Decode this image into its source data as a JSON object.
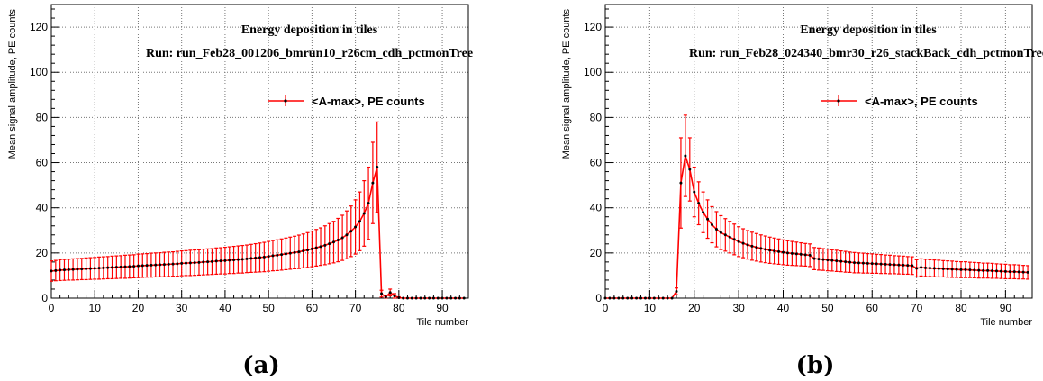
{
  "colors": {
    "series": "#ff0000",
    "marker": "#000000",
    "grid": "#777777",
    "frame": "#000000"
  },
  "chart_data": [
    {
      "type": "line",
      "caption": "(a)",
      "title": "Energy deposition in tiles",
      "subtitle": "Run: run_Feb28_001206_bmrun10_r26cm_cdh_pctmonTree",
      "xlabel": "Tile number",
      "ylabel": "Mean signal amplitude, PE counts",
      "xlim": [
        0,
        96
      ],
      "ylim": [
        0,
        130
      ],
      "xticks": [
        0,
        10,
        20,
        30,
        40,
        50,
        60,
        70,
        80,
        90
      ],
      "yticks": [
        0,
        20,
        40,
        60,
        80,
        100,
        120
      ],
      "grid": true,
      "legend": "top-right",
      "series": [
        {
          "name": "<A-max>, PE counts",
          "x": [
            0,
            1,
            2,
            3,
            4,
            5,
            6,
            7,
            8,
            9,
            10,
            11,
            12,
            13,
            14,
            15,
            16,
            17,
            18,
            19,
            20,
            21,
            22,
            23,
            24,
            25,
            26,
            27,
            28,
            29,
            30,
            31,
            32,
            33,
            34,
            35,
            36,
            37,
            38,
            39,
            40,
            41,
            42,
            43,
            44,
            45,
            46,
            47,
            48,
            49,
            50,
            51,
            52,
            53,
            54,
            55,
            56,
            57,
            58,
            59,
            60,
            61,
            62,
            63,
            64,
            65,
            66,
            67,
            68,
            69,
            70,
            71,
            72,
            73,
            74,
            75,
            76,
            77,
            78,
            79,
            80,
            81,
            82,
            83,
            84,
            85,
            86,
            87,
            88,
            89,
            90,
            91,
            92,
            93,
            94,
            95
          ],
          "y": [
            12.0,
            12.2,
            12.4,
            12.5,
            12.6,
            12.7,
            12.8,
            12.9,
            13.0,
            13.1,
            13.2,
            13.3,
            13.4,
            13.5,
            13.6,
            13.7,
            13.8,
            13.9,
            14.0,
            14.1,
            14.3,
            14.4,
            14.5,
            14.6,
            14.7,
            14.8,
            14.9,
            15.0,
            15.1,
            15.2,
            15.4,
            15.5,
            15.6,
            15.7,
            15.8,
            16.0,
            16.1,
            16.2,
            16.4,
            16.5,
            16.6,
            16.8,
            16.9,
            17.1,
            17.2,
            17.4,
            17.6,
            17.8,
            18.0,
            18.2,
            18.5,
            18.8,
            19.0,
            19.3,
            19.6,
            19.9,
            20.2,
            20.5,
            20.9,
            21.3,
            21.8,
            22.3,
            22.8,
            23.4,
            24.1,
            24.8,
            25.7,
            26.7,
            28.0,
            29.6,
            31.5,
            34.0,
            37.5,
            42.0,
            51.0,
            58.0,
            2.0,
            0.5,
            2.5,
            1.0,
            0.2,
            0,
            0,
            0,
            0,
            0,
            0,
            0,
            0,
            0,
            0,
            0,
            0,
            0,
            0,
            0
          ],
          "err": [
            4.5,
            4.5,
            4.6,
            4.6,
            4.6,
            4.7,
            4.7,
            4.7,
            4.8,
            4.8,
            4.8,
            4.9,
            4.9,
            4.9,
            5.0,
            5.0,
            5.0,
            5.1,
            5.1,
            5.1,
            5.2,
            5.2,
            5.2,
            5.3,
            5.3,
            5.3,
            5.4,
            5.4,
            5.4,
            5.5,
            5.5,
            5.5,
            5.6,
            5.6,
            5.6,
            5.7,
            5.7,
            5.7,
            5.8,
            5.8,
            5.9,
            5.9,
            6.0,
            6.0,
            6.1,
            6.1,
            6.2,
            6.3,
            6.4,
            6.5,
            6.6,
            6.7,
            6.8,
            6.9,
            7.0,
            7.1,
            7.2,
            7.4,
            7.5,
            7.7,
            7.9,
            8.1,
            8.3,
            8.6,
            8.9,
            9.2,
            9.6,
            10.0,
            10.6,
            11.2,
            12.0,
            13.0,
            14.5,
            16.0,
            18.0,
            20.0,
            1.5,
            0.8,
            1.5,
            1.0,
            0.4,
            0,
            0,
            0,
            0,
            0,
            0,
            0,
            0,
            0,
            0,
            0,
            0,
            0,
            0,
            0
          ]
        }
      ]
    },
    {
      "type": "line",
      "caption": "(b)",
      "title": "Energy deposition in tiles",
      "subtitle": "Run: run_Feb28_024340_bmr30_r26_stackBack_cdh_pctmonTree",
      "xlabel": "Tile number",
      "ylabel": "Mean signal amplitude, PE counts",
      "xlim": [
        0,
        96
      ],
      "ylim": [
        0,
        130
      ],
      "xticks": [
        0,
        10,
        20,
        30,
        40,
        50,
        60,
        70,
        80,
        90
      ],
      "yticks": [
        0,
        20,
        40,
        60,
        80,
        100,
        120
      ],
      "grid": true,
      "legend": "top-right",
      "series": [
        {
          "name": "<A-max>, PE counts",
          "x": [
            0,
            1,
            2,
            3,
            4,
            5,
            6,
            7,
            8,
            9,
            10,
            11,
            12,
            13,
            14,
            15,
            16,
            17,
            18,
            19,
            20,
            21,
            22,
            23,
            24,
            25,
            26,
            27,
            28,
            29,
            30,
            31,
            32,
            33,
            34,
            35,
            36,
            37,
            38,
            39,
            40,
            41,
            42,
            43,
            44,
            45,
            46,
            47,
            48,
            49,
            50,
            51,
            52,
            53,
            54,
            55,
            56,
            57,
            58,
            59,
            60,
            61,
            62,
            63,
            64,
            65,
            66,
            67,
            68,
            69,
            70,
            71,
            72,
            73,
            74,
            75,
            76,
            77,
            78,
            79,
            80,
            81,
            82,
            83,
            84,
            85,
            86,
            87,
            88,
            89,
            90,
            91,
            92,
            93,
            94,
            95
          ],
          "y": [
            0,
            0,
            0,
            0,
            0,
            0,
            0,
            0,
            0,
            0,
            0,
            0,
            0,
            0,
            0,
            0,
            3.0,
            51.0,
            63.0,
            57.0,
            47.0,
            42.0,
            38.0,
            35.0,
            32.5,
            30.5,
            29.0,
            28.0,
            27.0,
            26.0,
            25.0,
            24.3,
            23.6,
            23.0,
            22.5,
            22.0,
            21.6,
            21.2,
            20.9,
            20.6,
            20.3,
            20.0,
            19.8,
            19.6,
            19.4,
            19.2,
            19.0,
            17.5,
            17.3,
            17.1,
            16.9,
            16.7,
            16.5,
            16.3,
            16.1,
            15.9,
            15.7,
            15.6,
            15.5,
            15.4,
            15.3,
            15.2,
            15.1,
            15.0,
            14.9,
            14.8,
            14.7,
            14.6,
            14.5,
            14.4,
            13.2,
            13.6,
            13.4,
            13.3,
            13.2,
            13.1,
            13.0,
            12.9,
            12.8,
            12.7,
            12.6,
            12.6,
            12.5,
            12.4,
            12.3,
            12.2,
            12.2,
            12.1,
            12.0,
            11.9,
            11.8,
            11.7,
            11.7,
            11.6,
            11.5,
            11.4
          ],
          "err": [
            0,
            0,
            0,
            0,
            0,
            0,
            0,
            0,
            0,
            0,
            0,
            0,
            0,
            0,
            0,
            0,
            1.5,
            20.0,
            18.0,
            14.0,
            11.0,
            9.5,
            9.0,
            8.5,
            8.0,
            7.8,
            7.5,
            7.2,
            7.0,
            6.8,
            6.6,
            6.4,
            6.3,
            6.2,
            6.1,
            6.0,
            5.9,
            5.8,
            5.7,
            5.6,
            5.5,
            5.4,
            5.3,
            5.2,
            5.1,
            5.0,
            5.0,
            4.9,
            4.9,
            4.8,
            4.8,
            4.7,
            4.7,
            4.6,
            4.6,
            4.5,
            4.5,
            4.4,
            4.4,
            4.3,
            4.3,
            4.2,
            4.2,
            4.1,
            4.1,
            4.0,
            4.0,
            4.0,
            3.9,
            3.9,
            3.8,
            3.8,
            3.8,
            3.7,
            3.7,
            3.7,
            3.6,
            3.6,
            3.6,
            3.5,
            3.5,
            3.5,
            3.4,
            3.4,
            3.4,
            3.3,
            3.3,
            3.3,
            3.2,
            3.2,
            3.2,
            3.1,
            3.1,
            3.1,
            3.0,
            3.0
          ]
        }
      ]
    }
  ]
}
